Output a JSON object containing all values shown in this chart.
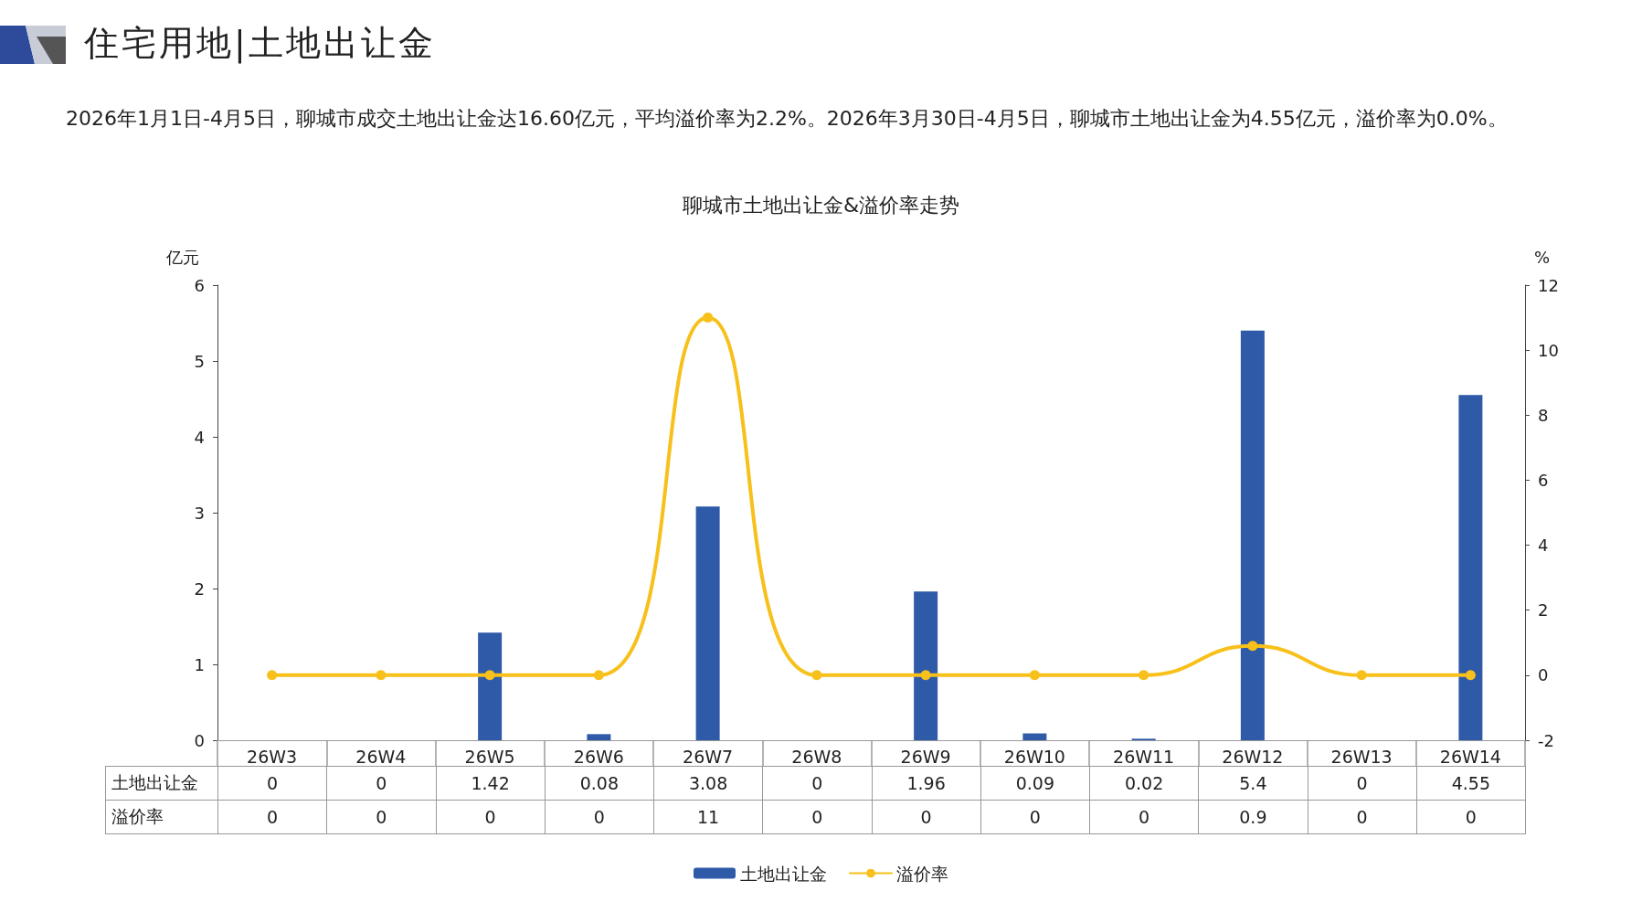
{
  "chart_data": {
    "type": "bar",
    "title": "住宅用地|土地出让金",
    "subtitle": "聊城市土地出让金&溢价率走势",
    "annotations": [
      "2026年1月1日-4月5日，聊城市成交土地出让金达16.60亿元，平均溢价率为2.2%。2026年3月30日-4月5日，聊城市土地出让金为4.55亿元，溢价率为0.0%。"
    ],
    "ylabel": "亿元",
    "y2label": "%",
    "categories": [
      "26W3",
      "26W4",
      "26W5",
      "26W6",
      "26W7",
      "26W8",
      "26W9",
      "26W10",
      "26W11",
      "26W12",
      "26W13",
      "26W14"
    ],
    "series": [
      {
        "name": "土地出让金",
        "color": "#2e5aa8",
        "values": [
          0,
          0,
          1.42,
          0.08,
          3.08,
          0,
          1.96,
          0.09,
          0.02,
          5.4,
          0,
          4.55
        ]
      },
      {
        "name": "溢价率",
        "type": "line",
        "axis": "y2",
        "color": "#f7c01a",
        "values": [
          0,
          0,
          0,
          0,
          11,
          0,
          0,
          0,
          0,
          0.9,
          0,
          0
        ]
      }
    ],
    "ylim": [
      0,
      6
    ],
    "yticks": [
      0,
      1,
      2,
      3,
      4,
      5,
      6
    ],
    "y2lim": [
      -2,
      12
    ],
    "y2ticks": [
      -2,
      0,
      2,
      4,
      6,
      8,
      10,
      12
    ],
    "data_labels": true,
    "grid": false,
    "legend": "bottom",
    "marker": "circle",
    "line_style": "solid"
  }
}
